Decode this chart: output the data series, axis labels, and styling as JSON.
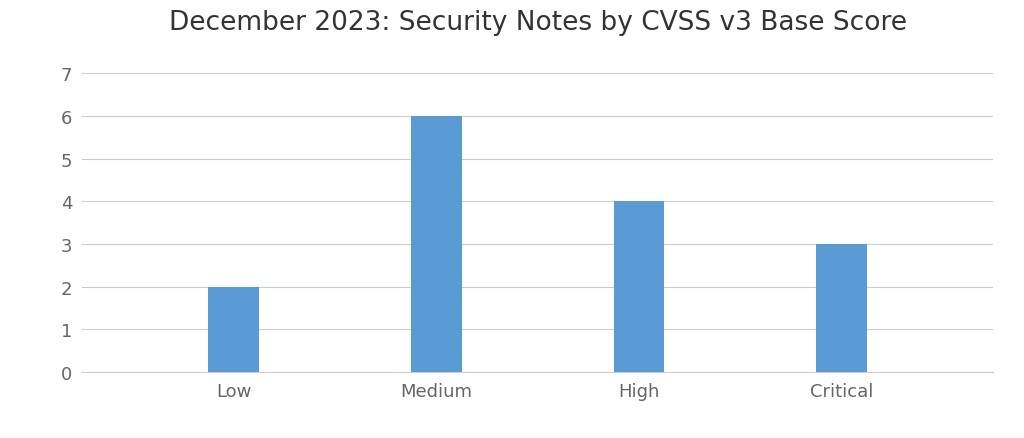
{
  "title": "December 2023: Security Notes by CVSS v3 Base Score",
  "categories": [
    "Low",
    "Medium",
    "High",
    "Critical"
  ],
  "values": [
    2,
    6,
    4,
    3
  ],
  "bar_color": "#5b9bd5",
  "ylim": [
    0,
    7.5
  ],
  "yticks": [
    0,
    1,
    2,
    3,
    4,
    5,
    6,
    7
  ],
  "title_fontsize": 19,
  "tick_fontsize": 13,
  "background_color": "#ffffff",
  "grid_color": "#cccccc",
  "bar_width": 0.25
}
